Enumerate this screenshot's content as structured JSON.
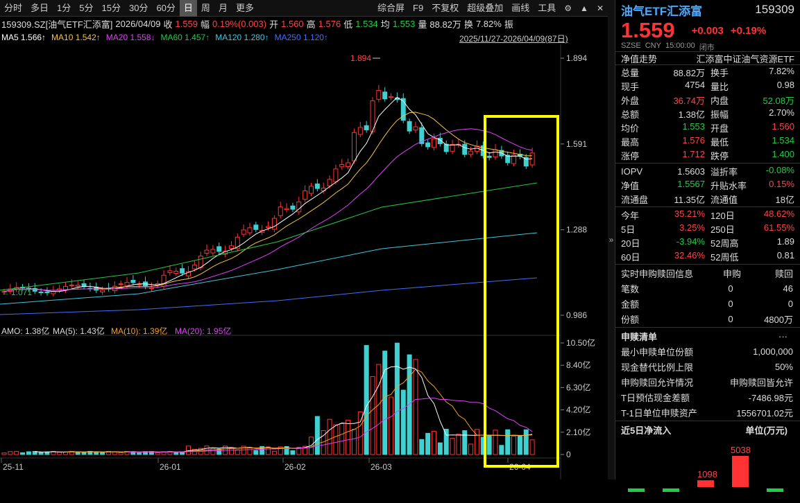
{
  "toolbar": {
    "periods": [
      "分时",
      "多日",
      "1分",
      "5分",
      "15分",
      "30分",
      "60分",
      "日",
      "周",
      "月",
      "更多"
    ],
    "active": "日",
    "right": [
      "综合屏",
      "F9",
      "不复权",
      "超级叠加",
      "画线",
      "工具"
    ]
  },
  "info": {
    "code_name": "159309.SZ[油气ETF汇添富]",
    "date": "2026/04/09",
    "close_lbl": "收",
    "close": "1.559",
    "amp_lbl": "幅",
    "amp": "0.19%(0.003)",
    "open_lbl": "开",
    "open": "1.560",
    "high_lbl": "高",
    "high": "1.576",
    "low_lbl": "低",
    "low": "1.534",
    "avg_lbl": "均",
    "avg": "1.553",
    "vol_lbl": "量",
    "vol": "88.82万",
    "turn_lbl": "换",
    "turn": "7.82%",
    "zhen_lbl": "振"
  },
  "ma": {
    "ma5": "MA5 1.566↑",
    "ma10": "MA10 1.542↑",
    "ma20": "MA20 1.558↓",
    "ma60": "MA60 1.457↑",
    "ma120": "MA120 1.280↑",
    "ma250": "MA250 1.120↑",
    "range": "2025/11/27-2026/04/09(87日)"
  },
  "colors": {
    "ma5": "#ffffff",
    "ma10": "#f5c242",
    "ma20": "#e040fb",
    "ma60": "#22cc44",
    "ma120": "#40c8e0",
    "ma250": "#4070ff",
    "up": "#ff3333",
    "down": "#40d0d0",
    "highlight": "#ffff00"
  },
  "chart": {
    "price_ticks": [
      "1.894",
      "1.591",
      "1.288",
      "0.986"
    ],
    "high_label": "1.894",
    "low_label": "1.071",
    "vol_ticks": [
      "10.50亿",
      "8.40亿",
      "6.30亿",
      "4.20亿",
      "2.10亿",
      "0"
    ],
    "amo": "AMO: 1.38亿",
    "amo_ma5": "MA(5): 1.43亿",
    "amo_ma10": "MA(10): 1.39亿",
    "amo_ma20": "MA(20): 1.95亿",
    "dates": [
      "25-11",
      "26-01",
      "26-02",
      "26-03",
      "26-04"
    ]
  },
  "side": {
    "name": "油气ETF汇添富",
    "code": "159309",
    "price": "1.559",
    "change": "+0.003",
    "change_pct": "+0.19%",
    "market": [
      "SZSE",
      "CNY",
      "15:00:00",
      "闭市"
    ],
    "nav_title": "净值走势",
    "nav_desc": "汇添富中证油气资源ETF",
    "rows": [
      [
        [
          "总量",
          "88.82万",
          "w"
        ],
        [
          "换手",
          "7.82%",
          "w"
        ]
      ],
      [
        [
          "现手",
          "4754",
          "w"
        ],
        [
          "量比",
          "0.98",
          "w"
        ]
      ],
      [
        [
          "外盘",
          "36.74万",
          "r"
        ],
        [
          "内盘",
          "52.08万",
          "g"
        ]
      ],
      [
        [
          "总额",
          "1.38亿",
          "w"
        ],
        [
          "振幅",
          "2.70%",
          "w"
        ]
      ],
      [
        [
          "均价",
          "1.553",
          "g"
        ],
        [
          "开盘",
          "1.560",
          "r"
        ]
      ],
      [
        [
          "最高",
          "1.576",
          "r"
        ],
        [
          "最低",
          "1.534",
          "g"
        ]
      ],
      [
        [
          "涨停",
          "1.712",
          "r"
        ],
        [
          "跌停",
          "1.400",
          "g"
        ]
      ],
      [
        [
          "IOPV",
          "1.5603",
          "w"
        ],
        [
          "溢折率",
          "-0.08%",
          "g"
        ]
      ],
      [
        [
          "净值",
          "1.5567",
          "g"
        ],
        [
          "升贴水率",
          "0.15%",
          "r"
        ]
      ],
      [
        [
          "流通盘",
          "11.35亿",
          "w"
        ],
        [
          "流通值",
          "18亿",
          "w"
        ]
      ],
      [
        [
          "今年",
          "35.21%",
          "r"
        ],
        [
          "120日",
          "48.62%",
          "r"
        ]
      ],
      [
        [
          "5日",
          "3.25%",
          "r"
        ],
        [
          "250日",
          "61.55%",
          "r"
        ]
      ],
      [
        [
          "20日",
          "-3.94%",
          "g"
        ],
        [
          "52周高",
          "1.89",
          "w"
        ]
      ],
      [
        [
          "60日",
          "32.46%",
          "r"
        ],
        [
          "52周低",
          "0.81",
          "w"
        ]
      ]
    ],
    "sub_title": "实时申购赎回信息",
    "sub_cols": [
      "申购",
      "赎回"
    ],
    "sub_rows": [
      [
        "笔数",
        "0",
        "46"
      ],
      [
        "金额",
        "0",
        "0"
      ],
      [
        "份额",
        "0",
        "4800万"
      ]
    ],
    "list_title": "申赎清单",
    "list_more": "···",
    "list_rows": [
      [
        "最小申赎单位份额",
        "1,000,000"
      ],
      [
        "现金替代比例上限",
        "50%"
      ],
      [
        "申购赎回允许情况",
        "申购赎回皆允许"
      ],
      [
        "T日预估现金差额",
        "-7486.98元"
      ],
      [
        "T-1日单位申赎资产",
        "1556701.02元"
      ]
    ],
    "flow_title": "近5日净流入",
    "flow_unit": "单位(万元)",
    "flow_v1": "1098",
    "flow_v2": "5038"
  }
}
